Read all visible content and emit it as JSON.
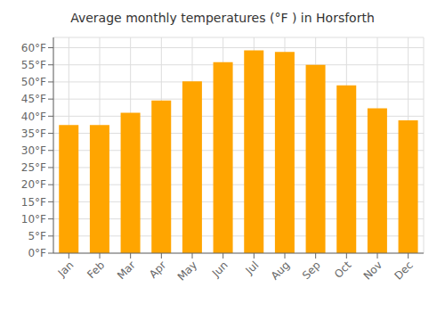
{
  "chart_data": {
    "type": "bar",
    "title": "Average monthly temperatures (°F ) in Horsforth",
    "categories": [
      "Jan",
      "Feb",
      "Mar",
      "Apr",
      "May",
      "Jun",
      "Jul",
      "Aug",
      "Sep",
      "Oct",
      "Nov",
      "Dec"
    ],
    "values": [
      37.4,
      37.4,
      41.0,
      44.6,
      50.2,
      55.8,
      59.2,
      58.8,
      55.0,
      49.0,
      42.3,
      38.8
    ],
    "color": "#FFA500",
    "ylim": [
      0,
      63
    ],
    "yticks": [
      {
        "value": 0,
        "label": "0°F"
      },
      {
        "value": 5,
        "label": "5°F"
      },
      {
        "value": 10,
        "label": "10°F"
      },
      {
        "value": 15,
        "label": "15°F"
      },
      {
        "value": 20,
        "label": "20°F"
      },
      {
        "value": 25,
        "label": "25°F"
      },
      {
        "value": 30,
        "label": "30°F"
      },
      {
        "value": 35,
        "label": "35°F"
      },
      {
        "value": 40,
        "label": "40°F"
      },
      {
        "value": 45,
        "label": "45°F"
      },
      {
        "value": 50,
        "label": "50°F"
      },
      {
        "value": 55,
        "label": "55°F"
      },
      {
        "value": 60,
        "label": "60°F"
      }
    ],
    "grid": true
  }
}
